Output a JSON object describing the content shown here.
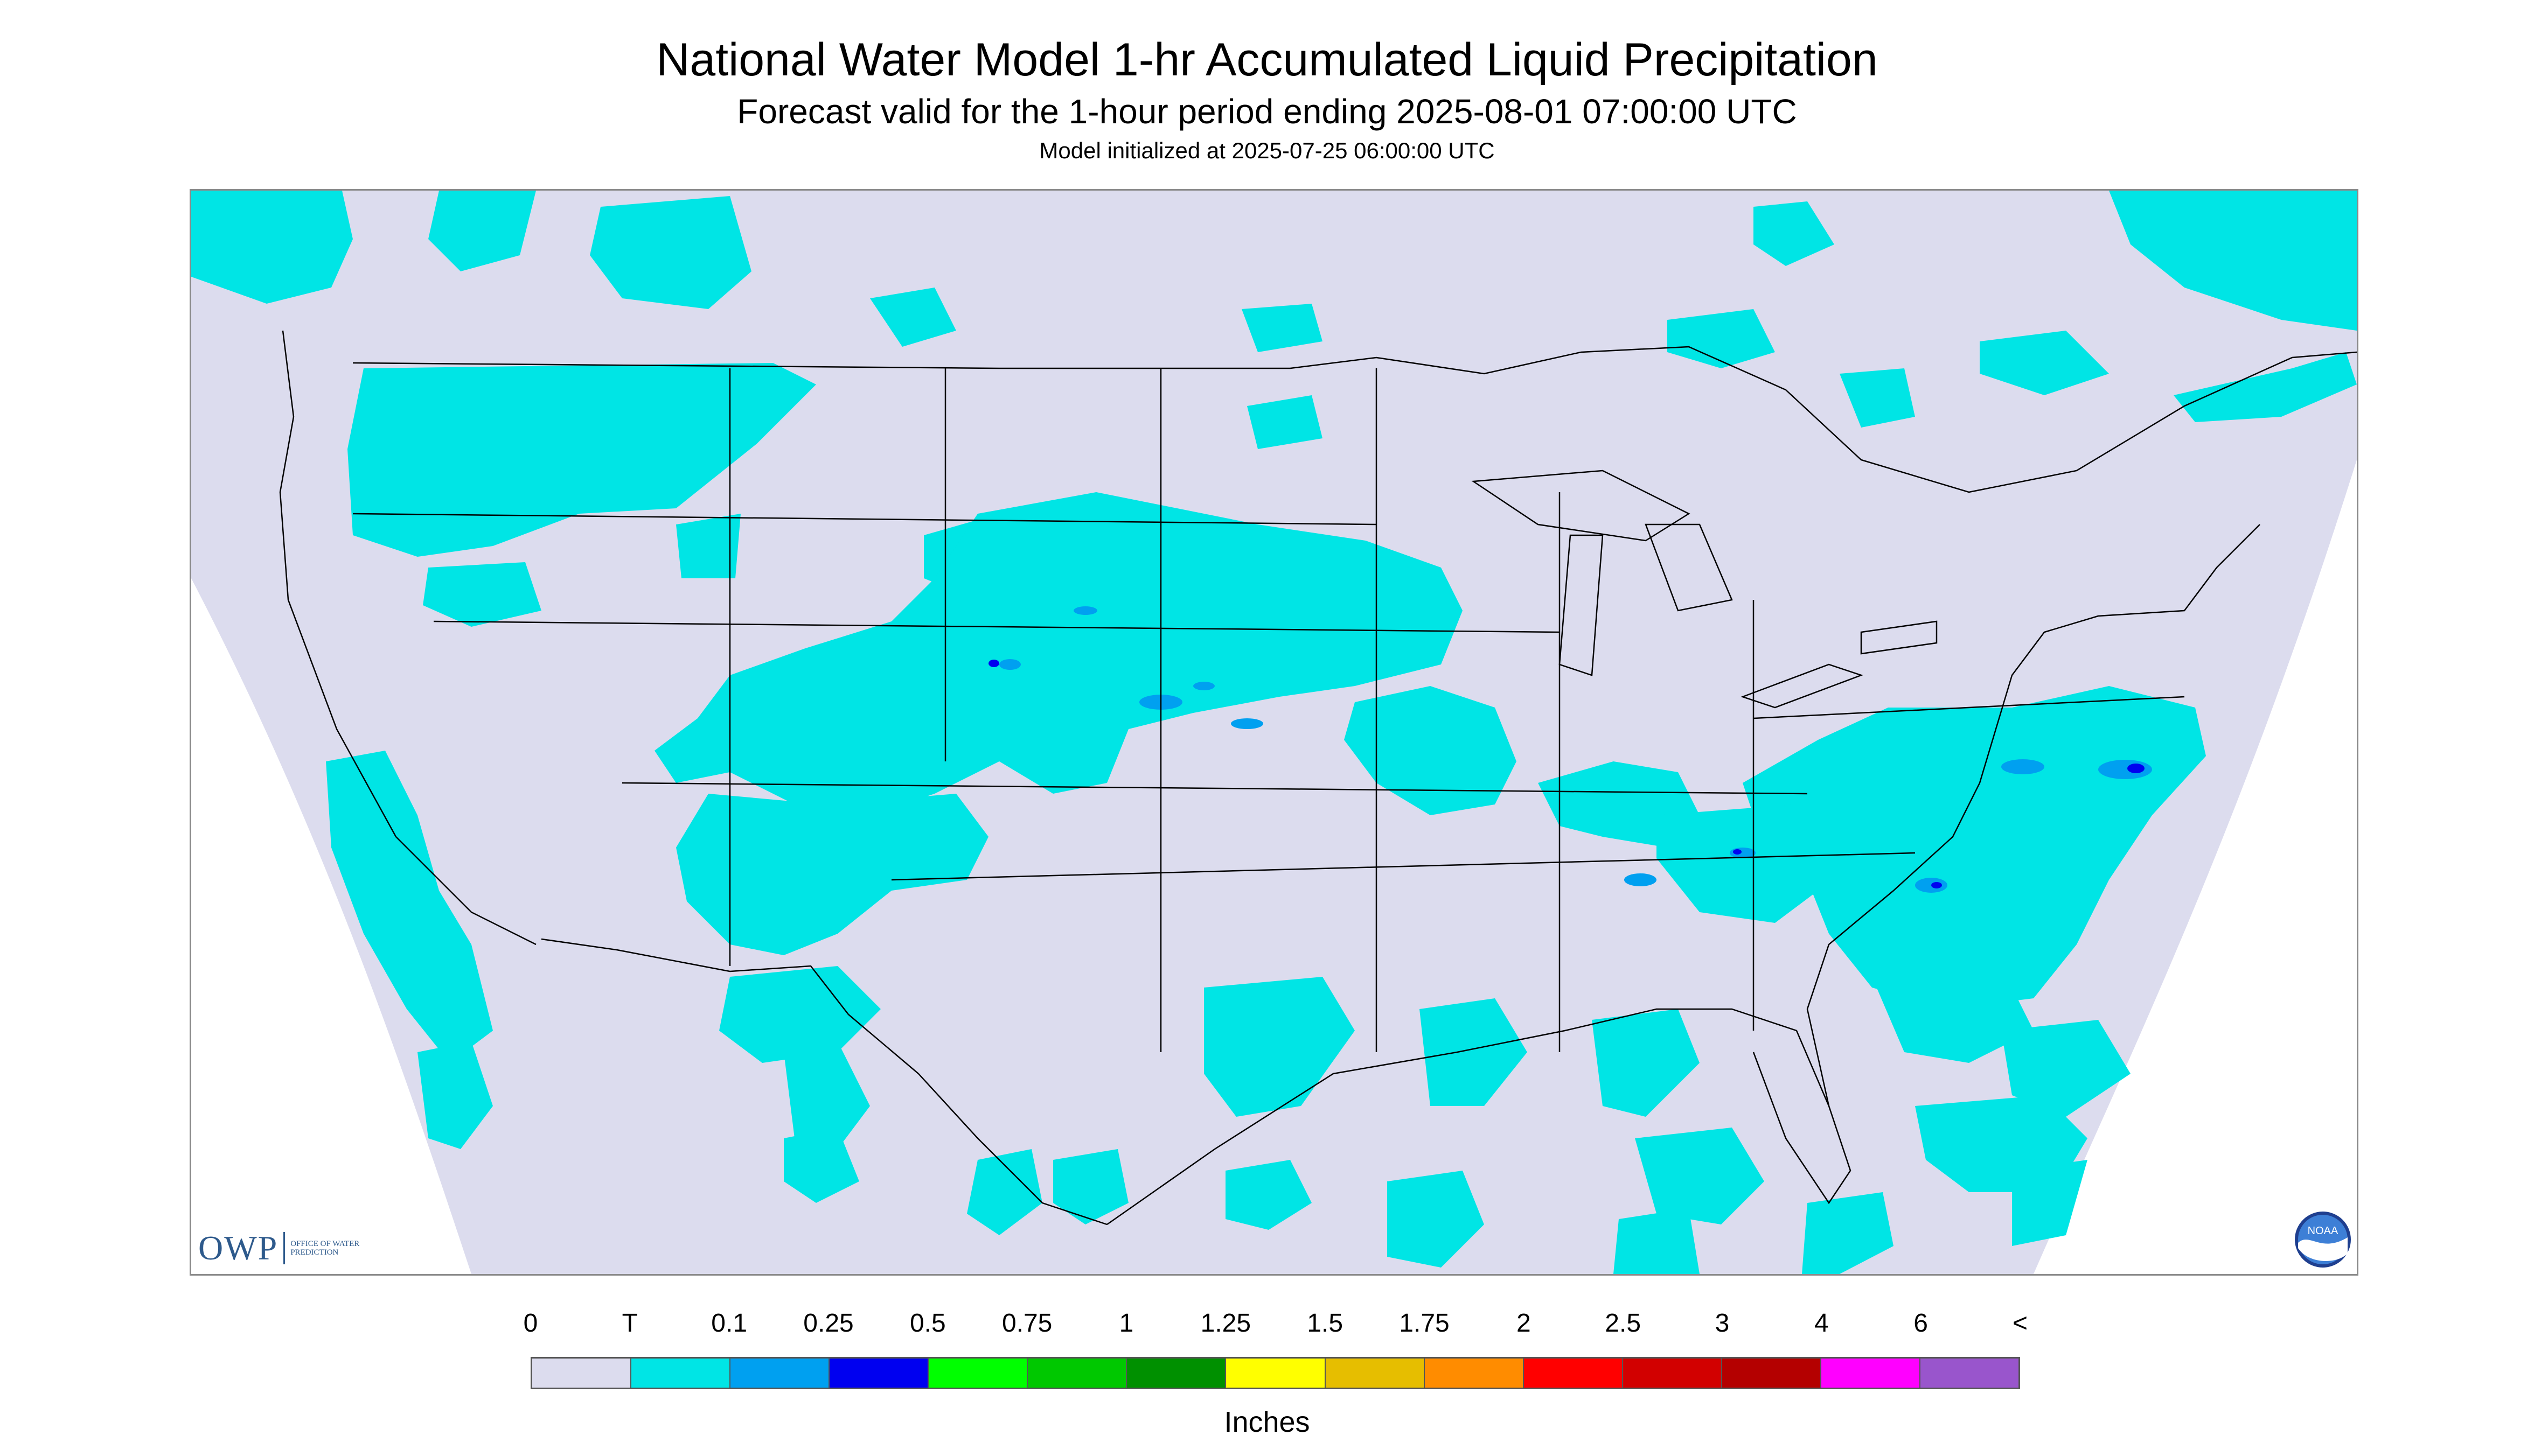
{
  "header": {
    "title": "National Water Model 1-hr Accumulated Liquid Precipitation",
    "subtitle": "Forecast valid for the 1-hour period ending 2025-08-01 07:00:00 UTC",
    "init": "Model initialized at 2025-07-25 06:00:00 UTC"
  },
  "logos": {
    "owp": "OWP",
    "owp_sub": "OFFICE OF WATER PREDICTION",
    "noaa": "NOAA"
  },
  "legend": {
    "ticks": [
      "0",
      "T",
      "0.1",
      "0.25",
      "0.5",
      "0.75",
      "1",
      "1.25",
      "1.5",
      "1.75",
      "2",
      "2.5",
      "3",
      "4",
      "6",
      "<"
    ],
    "colors": [
      "#dcdcee",
      "#00e5e5",
      "#00a0f0",
      "#0000f0",
      "#00ff00",
      "#00c800",
      "#009000",
      "#ffff00",
      "#e6be00",
      "#ff8c00",
      "#ff0000",
      "#d20000",
      "#b40000",
      "#ff00ff",
      "#9955cc"
    ],
    "units": "Inches"
  },
  "colors": {
    "background": "#ffffff",
    "no_precip": "#dcdcee",
    "trace": "#00e5e5",
    "light": "#00a0f0",
    "moderate": "#0000f0",
    "boundaries": "#000000"
  }
}
